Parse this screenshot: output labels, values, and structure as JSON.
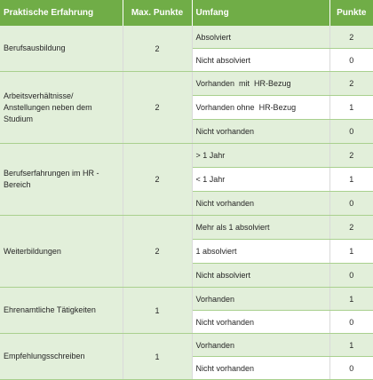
{
  "header": {
    "category": "Praktische Erfahrung",
    "max_points": "Max. Punkte",
    "scope": "Umfang",
    "points": "Punkte"
  },
  "groups": [
    {
      "category": "Berufsausbildung",
      "max_points": "2",
      "options": [
        {
          "label": "Absolviert",
          "points": "2"
        },
        {
          "label": "Nicht absolviert",
          "points": "0"
        }
      ]
    },
    {
      "category": "Arbeitsverhältnisse/ Anstellungen neben dem Studium",
      "max_points": "2",
      "options": [
        {
          "label": "Vorhanden  mit  HR-Bezug",
          "points": "2"
        },
        {
          "label": "Vorhanden ohne  HR-Bezug",
          "points": "1"
        },
        {
          "label": "Nicht vorhanden",
          "points": "0"
        }
      ]
    },
    {
      "category": "Berufserfahrungen im  HR - Bereich",
      "max_points": "2",
      "options": [
        {
          "label": "> 1 Jahr",
          "points": "2"
        },
        {
          "label": "< 1 Jahr",
          "points": "1"
        },
        {
          "label": "Nicht vorhanden",
          "points": "0"
        }
      ]
    },
    {
      "category": "Weiterbildungen",
      "max_points": "2",
      "options": [
        {
          "label": "Mehr als 1 absolviert",
          "points": "2"
        },
        {
          "label": "1 absolviert",
          "points": "1"
        },
        {
          "label": "Nicht absolviert",
          "points": "0"
        }
      ]
    },
    {
      "category": "Ehrenamtliche Tätigkeiten",
      "max_points": "1",
      "options": [
        {
          "label": "Vorhanden",
          "points": "1"
        },
        {
          "label": "Nicht vorhanden",
          "points": "0"
        }
      ]
    },
    {
      "category": "Empfehlungsschreiben",
      "max_points": "1",
      "options": [
        {
          "label": "Vorhanden",
          "points": "1"
        },
        {
          "label": "Nicht vorhanden",
          "points": "0"
        }
      ]
    }
  ]
}
